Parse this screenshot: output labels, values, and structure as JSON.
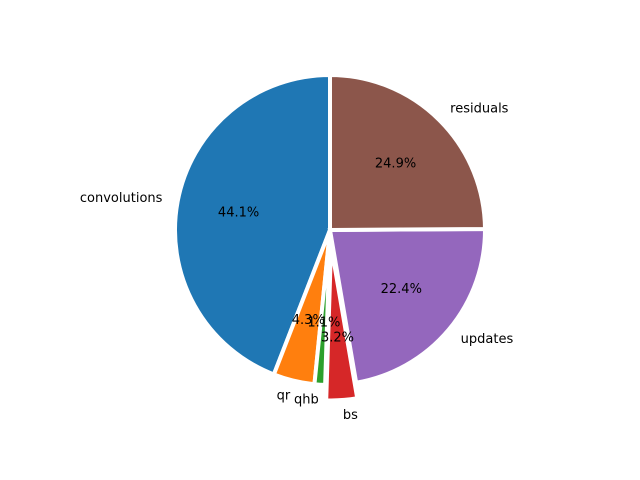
{
  "chart_data": {
    "type": "pie",
    "title": "",
    "start_angle_deg": 90,
    "direction": "counterclockwise",
    "slices": [
      {
        "label": "convolutions",
        "value": 44.1,
        "pct_label": "44.1%",
        "color": "#1f77b4",
        "explode": 0.0
      },
      {
        "label": "qr",
        "value": 4.3,
        "pct_label": "4.3%",
        "color": "#ff7f0e",
        "explode": 0.0
      },
      {
        "label": "qhb",
        "value": 1.1,
        "pct_label": "1.1%",
        "color": "#2ca02c",
        "explode": 0.0
      },
      {
        "label": "bs",
        "value": 3.2,
        "pct_label": "3.2%",
        "color": "#d62728",
        "explode": 0.1
      },
      {
        "label": "updates",
        "value": 22.4,
        "pct_label": "22.4%",
        "color": "#9467bd",
        "explode": 0.0
      },
      {
        "label": "residuals",
        "value": 24.9,
        "pct_label": "24.9%",
        "color": "#8c564b",
        "explode": 0.0
      }
    ]
  }
}
